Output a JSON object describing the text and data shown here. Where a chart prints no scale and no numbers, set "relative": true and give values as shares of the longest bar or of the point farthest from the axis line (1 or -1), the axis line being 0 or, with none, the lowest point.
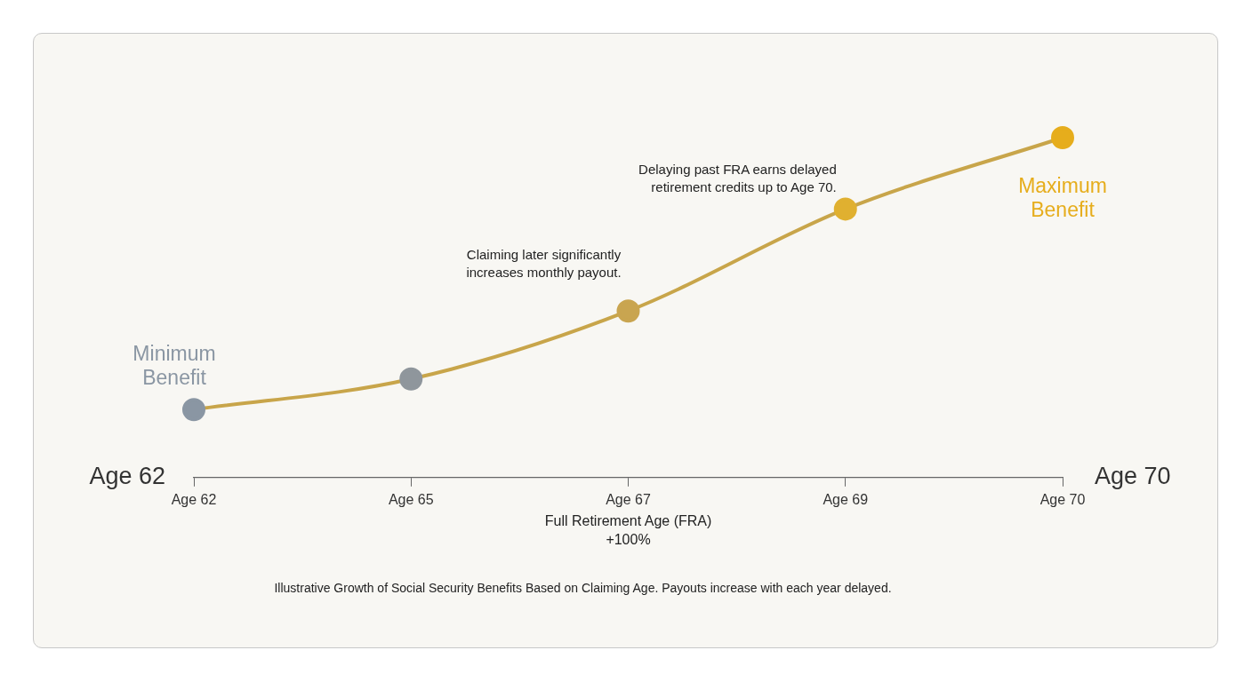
{
  "chart_data": {
    "type": "line",
    "relative": true,
    "categories": [
      "Age 62",
      "Age 65",
      "Age 67",
      "Age 69",
      "Age 70"
    ],
    "series": [
      {
        "color": "#c8a54a",
        "colors": [
          "#8a96a3",
          "#8f969c",
          "#c9a550",
          "#e0b030",
          "#e6ad1c"
        ],
        "values": [
          0.2,
          0.29,
          0.49,
          0.79,
          1
        ]
      }
    ],
    "marker": "circle",
    "grid": false,
    "legend": false,
    "annotations": [
      "Age 62",
      "Age 70",
      "Illustrative Growth of Social Security Benefits Based on Claiming Age. Payouts increase with each year delayed.",
      {
        "text": "Minimum Benefit",
        "x": "Age 62",
        "y": 0.2
      },
      {
        "text": "Maximum Benefit",
        "x": "Age 70",
        "y": 1
      },
      "Full Retirement Age (FRA) +100%",
      "Claiming later significantly increases monthly payout.",
      "Delaying past FRA earns delayed retirement credits up to Age 70."
    ]
  }
}
